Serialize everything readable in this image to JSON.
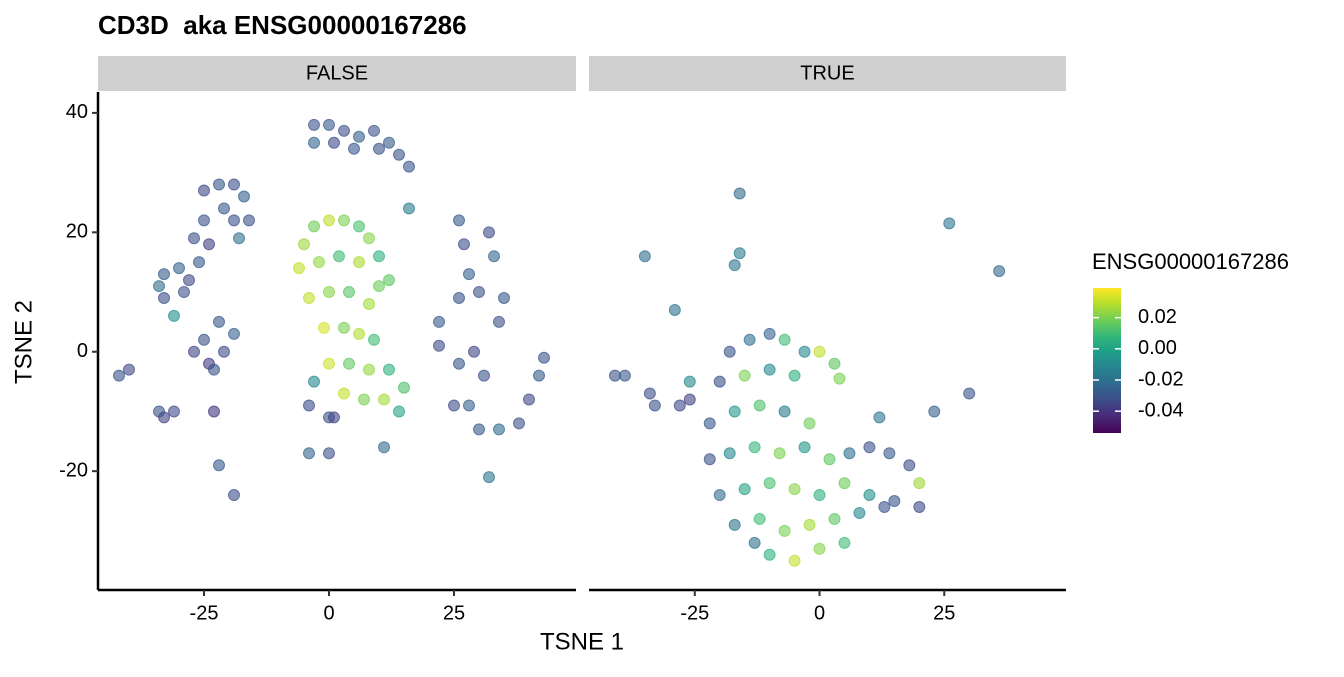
{
  "chart_data": {
    "type": "scatter",
    "title": "CD3D  aka ENSG00000167286",
    "x_label": "TSNE 1",
    "y_label": "TSNE 2",
    "xlim": [
      -46.2,
      49.4
    ],
    "ylim": [
      -39.9,
      43.5
    ],
    "xticks": [
      -25,
      0,
      25
    ],
    "yticks": [
      -20,
      0,
      20,
      40
    ],
    "color_label": "ENSG00000167286",
    "color_lim": [
      -0.054,
      0.039
    ],
    "color_ticks": [
      -0.04,
      -0.02,
      {
        "value": 0,
        "label": "0.00"
      },
      0.02
    ],
    "colormap": "viridis",
    "facets": [
      {
        "name": "FALSE",
        "x": [
          -3,
          0,
          3,
          6,
          9,
          12,
          14,
          16,
          -3,
          1,
          5,
          10,
          -25,
          -25,
          -22,
          -19,
          -17,
          -16,
          -18,
          -24,
          -21,
          -19,
          -33,
          -33,
          -30,
          -29,
          -31,
          -28,
          -26,
          -27,
          -34,
          -27,
          -25,
          -24,
          -22,
          -21,
          -19,
          -23,
          -33,
          -34,
          -31,
          -42,
          -40,
          -23,
          -22,
          -19,
          -5,
          -3,
          0,
          3,
          6,
          8,
          10,
          12,
          -6,
          -2,
          2,
          6,
          10,
          -4,
          0,
          4,
          8,
          -1,
          3,
          6,
          9,
          0,
          4,
          8,
          12,
          3,
          7,
          11,
          15,
          -3,
          -4,
          0,
          14,
          26,
          27,
          28,
          30,
          33,
          32,
          35,
          34,
          26,
          22,
          22,
          26,
          29,
          31,
          28,
          25,
          30,
          34,
          38,
          40,
          42,
          43,
          32,
          16,
          -4,
          0,
          11,
          1
        ],
        "y": [
          38,
          38,
          37,
          36,
          37,
          35,
          33,
          31,
          35,
          35,
          34,
          34,
          22,
          27,
          28,
          28,
          26,
          22,
          19,
          18,
          24,
          22,
          13,
          9,
          14,
          10,
          6,
          12,
          15,
          19,
          11,
          0,
          2,
          -2,
          5,
          0,
          3,
          -3,
          -11,
          -10,
          -10,
          -4,
          -3,
          -10,
          -19,
          -24,
          18,
          21,
          22,
          22,
          21,
          19,
          16,
          12,
          14,
          15,
          16,
          15,
          11,
          9,
          10,
          10,
          8,
          4,
          4,
          3,
          2,
          -2,
          -2,
          -3,
          -3,
          -7,
          -8,
          -8,
          -6,
          -5,
          -9,
          -11,
          -10,
          22,
          18,
          13,
          10,
          16,
          20,
          9,
          5,
          9,
          5,
          1,
          -2,
          0,
          -4,
          -9,
          -9,
          -13,
          -13,
          -12,
          -8,
          -4,
          -1,
          -21,
          24,
          -17,
          -17,
          -16,
          -11
        ],
        "values": [
          -0.03,
          -0.028,
          -0.032,
          -0.026,
          -0.03,
          -0.027,
          -0.031,
          -0.029,
          -0.025,
          -0.033,
          -0.028,
          -0.03,
          -0.03,
          -0.034,
          -0.028,
          -0.032,
          -0.026,
          -0.03,
          -0.02,
          -0.036,
          -0.029,
          -0.031,
          -0.027,
          -0.032,
          -0.025,
          -0.03,
          -0.008,
          -0.034,
          -0.028,
          -0.03,
          -0.022,
          -0.035,
          -0.03,
          -0.038,
          -0.028,
          -0.033,
          -0.026,
          -0.031,
          -0.036,
          -0.03,
          -0.033,
          -0.03,
          -0.034,
          -0.04,
          -0.028,
          -0.032,
          0.025,
          0.018,
          0.03,
          0.02,
          0.012,
          0.022,
          0.005,
          0.015,
          0.03,
          0.024,
          0.01,
          0.027,
          0.018,
          0.03,
          0.022,
          0.014,
          0.026,
          0.033,
          0.02,
          0.028,
          0.01,
          0.032,
          0.016,
          0.024,
          0.005,
          0.03,
          0.02,
          0.026,
          0.012,
          -0.01,
          -0.032,
          -0.03,
          0.0,
          -0.028,
          -0.032,
          -0.026,
          -0.03,
          -0.024,
          -0.034,
          -0.028,
          -0.031,
          -0.03,
          -0.027,
          -0.033,
          -0.029,
          -0.035,
          -0.03,
          -0.026,
          -0.032,
          -0.028,
          -0.022,
          -0.03,
          -0.034,
          -0.027,
          -0.03,
          -0.018,
          -0.015,
          -0.025,
          -0.03,
          -0.022,
          -0.035
        ]
      },
      {
        "name": "TRUE",
        "x": [
          -35,
          -16,
          -17,
          -16,
          -29,
          26,
          36,
          -41,
          -39,
          -34,
          -33,
          -28,
          -26,
          -26,
          30,
          23,
          12,
          4,
          3,
          0,
          -3,
          -18,
          -14,
          -10,
          -7,
          -20,
          -15,
          -10,
          -5,
          -22,
          -17,
          -12,
          -7,
          -2,
          -22,
          -18,
          -13,
          -8,
          -3,
          2,
          6,
          10,
          14,
          18,
          20,
          -20,
          -15,
          -10,
          -5,
          0,
          5,
          10,
          15,
          20,
          -17,
          -12,
          -7,
          -2,
          3,
          8,
          13,
          -10,
          -5,
          0,
          5,
          -13
        ],
        "y": [
          16,
          26.5,
          14.5,
          16.5,
          7,
          21.5,
          13.5,
          -4,
          -4,
          -7,
          -9,
          -9,
          -8,
          -5,
          -7,
          -10,
          -11,
          -4.5,
          -2,
          0,
          0,
          0,
          2,
          3,
          2,
          -5,
          -4,
          -3,
          -4,
          -12,
          -10,
          -9,
          -10,
          -12,
          -18,
          -17,
          -16,
          -17,
          -16,
          -18,
          -17,
          -16,
          -17,
          -19,
          -22,
          -24,
          -23,
          -22,
          -23,
          -24,
          -22,
          -24,
          -25,
          -26,
          -29,
          -28,
          -30,
          -29,
          -28,
          -27,
          -26,
          -34,
          -35,
          -33,
          -32,
          -32
        ],
        "values": [
          -0.02,
          -0.022,
          -0.018,
          -0.015,
          -0.02,
          -0.018,
          -0.022,
          -0.03,
          -0.028,
          -0.032,
          -0.03,
          -0.034,
          -0.036,
          -0.01,
          -0.03,
          -0.025,
          -0.018,
          0.02,
          0.015,
          0.03,
          -0.01,
          -0.03,
          -0.02,
          -0.025,
          0.01,
          -0.032,
          0.02,
          -0.01,
          0.005,
          -0.028,
          -0.005,
          0.012,
          -0.015,
          0.018,
          -0.03,
          -0.01,
          0.008,
          0.02,
          -0.005,
          0.015,
          -0.02,
          -0.03,
          -0.028,
          -0.032,
          0.025,
          -0.022,
          0.0,
          0.012,
          0.022,
          0.005,
          0.018,
          -0.008,
          -0.03,
          -0.034,
          -0.018,
          0.01,
          0.02,
          0.026,
          0.015,
          -0.01,
          -0.03,
          0.005,
          0.03,
          0.022,
          0.01,
          -0.02
        ]
      }
    ]
  }
}
